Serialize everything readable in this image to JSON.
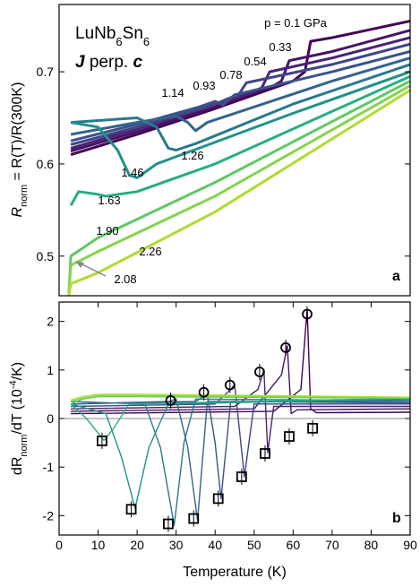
{
  "chart_data": [
    {
      "type": "line",
      "title": [
        "LuNb",
        "6",
        "Sn",
        "6"
      ],
      "subtitle": [
        "J",
        " perp. ",
        "c"
      ],
      "ylabel": [
        "R",
        "norm",
        " = R(T)/R(300K)"
      ],
      "panel_label": "a",
      "xlim": [
        0,
        90
      ],
      "ylim": [
        0.457,
        0.773
      ],
      "yticks": [
        0.5,
        0.6,
        0.7
      ],
      "series": [
        {
          "name": "p = 0.1 GPa",
          "color": "#440154",
          "x": [
            3,
            20,
            40,
            60,
            63,
            64.5,
            70,
            90
          ],
          "values": [
            0.61,
            0.632,
            0.66,
            0.69,
            0.7,
            0.733,
            0.737,
            0.755
          ]
        },
        {
          "name": "0.33",
          "color": "#471365",
          "x": [
            3,
            20,
            40,
            55,
            57,
            59,
            70,
            90
          ],
          "values": [
            0.614,
            0.635,
            0.662,
            0.685,
            0.69,
            0.712,
            0.722,
            0.745
          ]
        },
        {
          "name": "0.54",
          "color": "#482475",
          "x": [
            3,
            20,
            40,
            50,
            52,
            54,
            70,
            90
          ],
          "values": [
            0.617,
            0.638,
            0.665,
            0.678,
            0.683,
            0.7,
            0.715,
            0.737
          ]
        },
        {
          "name": "0.78",
          "color": "#414487",
          "x": [
            3,
            20,
            40,
            44,
            46,
            48,
            70,
            90
          ],
          "values": [
            0.621,
            0.64,
            0.665,
            0.672,
            0.675,
            0.688,
            0.708,
            0.73
          ]
        },
        {
          "name": "0.93",
          "color": "#3b528b",
          "x": [
            3,
            20,
            36,
            40,
            42,
            45,
            70,
            90
          ],
          "values": [
            0.625,
            0.643,
            0.662,
            0.668,
            0.664,
            0.675,
            0.7,
            0.722
          ]
        },
        {
          "name": "1.14",
          "color": "#33638d",
          "x": [
            3,
            20,
            30,
            33,
            35,
            38,
            70,
            90
          ],
          "values": [
            0.632,
            0.645,
            0.652,
            0.645,
            0.636,
            0.645,
            0.69,
            0.715
          ]
        },
        {
          "name": "1.26",
          "color": "#2a788e",
          "x": [
            3,
            20,
            25,
            28,
            30,
            35,
            60,
            90
          ],
          "values": [
            0.645,
            0.65,
            0.64,
            0.617,
            0.615,
            0.622,
            0.665,
            0.708
          ]
        },
        {
          "name": "1.46",
          "color": "#21918c",
          "x": [
            3,
            10,
            15,
            18,
            20,
            25,
            60,
            90
          ],
          "values": [
            0.645,
            0.64,
            0.615,
            0.588,
            0.585,
            0.6,
            0.655,
            0.7
          ]
        },
        {
          "name": "1.63",
          "color": "#28ae80",
          "x": [
            3,
            5,
            10,
            12,
            20,
            40,
            90
          ],
          "values": [
            0.555,
            0.57,
            0.567,
            0.565,
            0.57,
            0.6,
            0.695
          ]
        },
        {
          "name": "1.90",
          "color": "#5ec962",
          "x": [
            2.5,
            3,
            10,
            40,
            90
          ],
          "values": [
            0.46,
            0.5,
            0.52,
            0.58,
            0.69
          ]
        },
        {
          "name": "2.08",
          "color": "#84d44b",
          "x": [
            2.5,
            3,
            10,
            40,
            90
          ],
          "values": [
            0.46,
            0.49,
            0.505,
            0.565,
            0.685
          ]
        },
        {
          "name": "2.26",
          "color": "#addc30",
          "x": [
            2.5,
            3,
            10,
            40,
            90
          ],
          "values": [
            0.457,
            0.47,
            0.482,
            0.548,
            0.68
          ]
        }
      ]
    },
    {
      "type": "line",
      "ylabel": [
        "dR",
        "norm",
        "/dT (10",
        "-4",
        "/K)"
      ],
      "xlabel": "Temperature (K)",
      "panel_label": "b",
      "xlim": [
        0,
        90
      ],
      "xticks": [
        0,
        10,
        20,
        30,
        40,
        50,
        60,
        70,
        80,
        90
      ],
      "ylim": [
        -2.4,
        2.4
      ],
      "yticks": [
        -2,
        -1,
        0,
        1,
        2
      ],
      "reference_line": 0,
      "series": [
        {
          "color": "#440154",
          "x": [
            3,
            55,
            62,
            63.6,
            64.5,
            66,
            90
          ],
          "values": [
            0.1,
            0.15,
            0.6,
            2.25,
            0.2,
            0.12,
            0.13
          ]
        },
        {
          "color": "#471365",
          "x": [
            3,
            50,
            57,
            58.5,
            59.5,
            61,
            90
          ],
          "values": [
            0.15,
            0.2,
            0.9,
            1.5,
            0.1,
            0.18,
            0.2
          ]
        },
        {
          "color": "#482475",
          "x": [
            3,
            45,
            51,
            52.5,
            53.5,
            55,
            90
          ],
          "values": [
            0.2,
            0.25,
            0.6,
            1.0,
            -0.7,
            0.25,
            0.25
          ]
        },
        {
          "color": "#414487",
          "x": [
            3,
            40,
            44,
            45,
            47.5,
            50,
            90
          ],
          "values": [
            0.25,
            0.3,
            0.6,
            0.7,
            -1.2,
            0.3,
            0.3
          ]
        },
        {
          "color": "#3b528b",
          "x": [
            3,
            35,
            38,
            40,
            41.5,
            44,
            90
          ],
          "values": [
            0.3,
            0.35,
            0.5,
            -0.5,
            -1.65,
            0.35,
            0.32
          ]
        },
        {
          "color": "#33638d",
          "x": [
            3,
            28,
            30,
            33,
            35.5,
            38,
            90
          ],
          "values": [
            0.3,
            0.35,
            0.4,
            -0.6,
            -2.1,
            0.35,
            0.35
          ]
        },
        {
          "color": "#2a788e",
          "x": [
            3,
            22,
            26,
            29.5,
            32,
            35,
            90
          ],
          "values": [
            0.35,
            0.3,
            -0.6,
            -2.2,
            -0.5,
            0.4,
            0.37
          ]
        },
        {
          "color": "#21918c",
          "x": [
            3,
            12,
            16,
            19.5,
            23,
            28,
            90
          ],
          "values": [
            0.3,
            0.1,
            -0.8,
            -1.85,
            -0.6,
            0.3,
            0.4
          ]
        },
        {
          "color": "#28ae80",
          "x": [
            3,
            7,
            10,
            11.5,
            14,
            18,
            90
          ],
          "values": [
            0.3,
            0,
            -0.3,
            -0.45,
            -0.2,
            0.3,
            0.42
          ]
        },
        {
          "color": "#5ec962",
          "x": [
            3,
            6,
            10,
            20,
            90
          ],
          "values": [
            0.3,
            0.4,
            0.45,
            0.45,
            0.42
          ]
        },
        {
          "color": "#84d44b",
          "x": [
            3,
            6,
            10,
            20,
            90
          ],
          "values": [
            0.35,
            0.42,
            0.47,
            0.47,
            0.43
          ]
        },
        {
          "color": "#addc30",
          "x": [
            3,
            6,
            10,
            20,
            90
          ],
          "values": [
            0.38,
            0.45,
            0.5,
            0.5,
            0.44
          ]
        },
        {
          "marker": "circle",
          "color": "#000000",
          "x": [
            28.6,
            37.1,
            43.8,
            51.4,
            58.1,
            63.6
          ],
          "values": [
            0.37,
            0.54,
            0.69,
            0.96,
            1.46,
            2.15
          ]
        },
        {
          "marker": "square",
          "color": "#000000",
          "x": [
            11,
            18.5,
            28,
            34.5,
            40.8,
            46.8,
            52.8,
            59,
            65
          ],
          "values": [
            -0.46,
            -1.87,
            -2.17,
            -2.06,
            -1.65,
            -1.2,
            -0.72,
            -0.37,
            -0.2
          ]
        }
      ]
    }
  ]
}
